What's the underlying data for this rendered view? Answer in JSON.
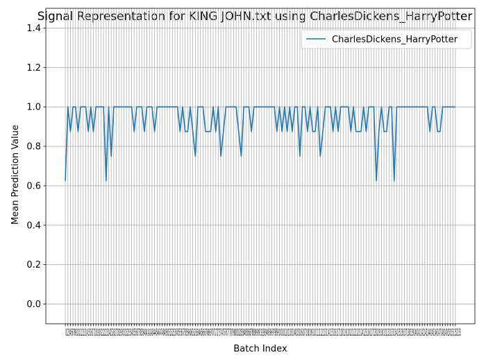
{
  "chart_data": {
    "type": "line",
    "title": "Signal Representation for KING JOHN.txt using CharlesDickens_HarryPotter",
    "xlabel": "Batch Index",
    "ylabel": "Mean Prediction Value",
    "ylim": [
      -0.1,
      1.5
    ],
    "xlim": [
      -7.65,
      160.65
    ],
    "yticks": [
      0.0,
      0.2,
      0.4,
      0.6,
      0.8,
      1.0,
      1.2,
      1.4
    ],
    "ytick_labels": [
      "0.0",
      "0.2",
      "0.4",
      "0.6",
      "0.8",
      "1.0",
      "1.2",
      "1.4"
    ],
    "grid": true,
    "legend_position": "top-right",
    "x_tick_count": 154,
    "x_tick_labels_overlapping": "0123456789101112131415161718192021222324252627282930313233343536373839404142434445464748495051525354555657585960616263646566676869707172737475767778798081828384858687888990919293949596979899100101102103104105106107108109110111112113114115116117118119120121122123124125126127128129130131132133134135136137138139140141142143144145146147148149150151152153",
    "series": [
      {
        "name": "CharlesDickens_HarryPotter",
        "color": "#1f77b4",
        "values": [
          0.625,
          1.0,
          0.875,
          1.0,
          1.0,
          0.875,
          1.0,
          1.0,
          1.0,
          0.875,
          1.0,
          0.875,
          1.0,
          1.0,
          1.0,
          1.0,
          0.625,
          1.0,
          0.75,
          1.0,
          1.0,
          1.0,
          1.0,
          1.0,
          1.0,
          1.0,
          1.0,
          0.875,
          1.0,
          1.0,
          1.0,
          0.875,
          1.0,
          1.0,
          1.0,
          0.875,
          1.0,
          1.0,
          1.0,
          1.0,
          1.0,
          1.0,
          1.0,
          1.0,
          1.0,
          0.875,
          1.0,
          0.875,
          0.875,
          1.0,
          0.875,
          0.75,
          1.0,
          1.0,
          1.0,
          0.875,
          0.875,
          0.875,
          1.0,
          0.875,
          1.0,
          0.75,
          0.875,
          1.0,
          1.0,
          1.0,
          1.0,
          1.0,
          0.875,
          0.75,
          1.0,
          1.0,
          1.0,
          0.875,
          1.0,
          1.0,
          1.0,
          1.0,
          1.0,
          1.0,
          1.0,
          1.0,
          1.0,
          0.875,
          1.0,
          0.875,
          1.0,
          0.875,
          1.0,
          0.875,
          1.0,
          1.0,
          0.75,
          1.0,
          1.0,
          0.875,
          1.0,
          0.875,
          0.875,
          1.0,
          0.75,
          0.875,
          1.0,
          1.0,
          1.0,
          0.875,
          1.0,
          0.875,
          1.0,
          1.0,
          1.0,
          1.0,
          0.875,
          1.0,
          0.875,
          0.875,
          0.875,
          1.0,
          0.875,
          1.0,
          1.0,
          1.0,
          0.625,
          0.875,
          1.0,
          0.875,
          0.875,
          1.0,
          1.0,
          0.625,
          1.0,
          1.0,
          1.0,
          1.0,
          1.0,
          1.0,
          1.0,
          1.0,
          1.0,
          1.0,
          1.0,
          1.0,
          1.0,
          0.875,
          1.0,
          1.0,
          0.875,
          0.875,
          1.0,
          1.0,
          1.0,
          1.0,
          1.0,
          1.0
        ]
      }
    ]
  }
}
